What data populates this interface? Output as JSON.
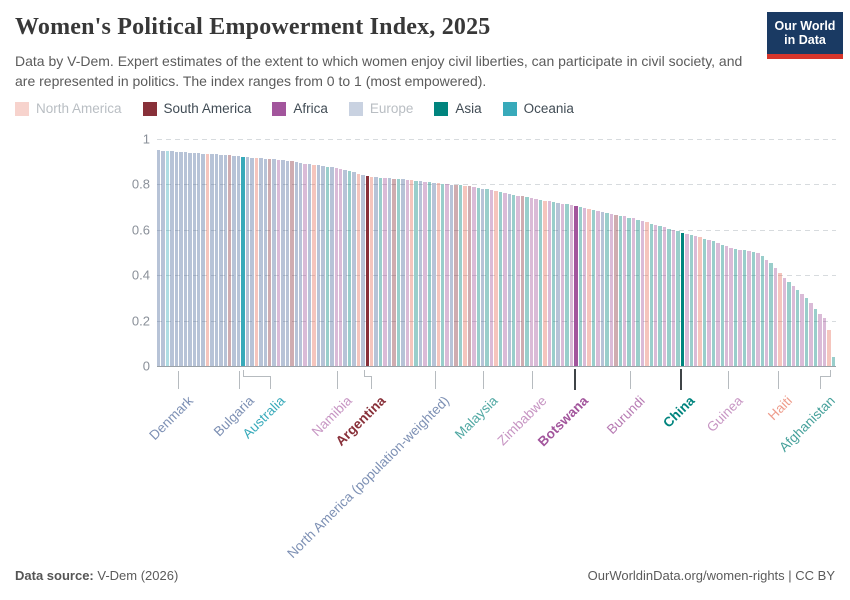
{
  "header": {
    "title": "Women's Political Empowerment Index, 2025",
    "subtitle": "Data by V-Dem. Expert estimates of the extent to which women enjoy civil liberties, can participate in civil society, and are represented in politics. The index ranges from 0 to 1 (most empowered).",
    "logo": {
      "line1": "Our World",
      "line2": "in Data"
    }
  },
  "legend": {
    "items": [
      {
        "label": "North America",
        "code": "N",
        "active": false
      },
      {
        "label": "South America",
        "code": "S",
        "active": true
      },
      {
        "label": "Africa",
        "code": "F",
        "active": true
      },
      {
        "label": "Europe",
        "code": "E",
        "active": false
      },
      {
        "label": "Asia",
        "code": "A",
        "active": true
      },
      {
        "label": "Oceania",
        "code": "O",
        "active": true
      }
    ],
    "active_text_color": "#414c55",
    "inactive_text_color": "#b9bec3"
  },
  "colors": {
    "continents": {
      "E": "#4C6A9C",
      "N": "#E56E5A",
      "S": "#883039",
      "F": "#A2559C",
      "A": "#00847E",
      "O": "#38AABA"
    },
    "faded_bar_opacity": 0.4,
    "logo_bg": "#1a3a63",
    "logo_stripe": "#d7352b"
  },
  "chart_data": {
    "type": "bar",
    "title": "Women's Political Empowerment Index, 2025",
    "xlabel": "",
    "ylabel": "",
    "ylim": [
      0,
      1
    ],
    "yticks": [
      1,
      0.8,
      0.6,
      0.4,
      0.2,
      0
    ],
    "grid": "dashed-horizontal",
    "legend_position": "top",
    "n_bars": 153,
    "sort": "descending",
    "values": [
      0.95,
      0.949,
      0.947,
      0.946,
      0.944,
      0.943,
      0.941,
      0.94,
      0.939,
      0.937,
      0.936,
      0.935,
      0.933,
      0.932,
      0.931,
      0.929,
      0.928,
      0.926,
      0.925,
      0.922,
      0.92,
      0.918,
      0.917,
      0.915,
      0.913,
      0.911,
      0.91,
      0.908,
      0.906,
      0.903,
      0.901,
      0.898,
      0.895,
      0.892,
      0.889,
      0.887,
      0.884,
      0.881,
      0.878,
      0.876,
      0.873,
      0.87,
      0.864,
      0.858,
      0.853,
      0.847,
      0.841,
      0.835,
      0.833,
      0.832,
      0.83,
      0.829,
      0.827,
      0.825,
      0.824,
      0.822,
      0.82,
      0.818,
      0.816,
      0.814,
      0.811,
      0.809,
      0.807,
      0.805,
      0.803,
      0.801,
      0.799,
      0.798,
      0.796,
      0.794,
      0.792,
      0.789,
      0.785,
      0.782,
      0.778,
      0.774,
      0.77,
      0.766,
      0.762,
      0.759,
      0.755,
      0.751,
      0.747,
      0.743,
      0.739,
      0.735,
      0.732,
      0.728,
      0.725,
      0.722,
      0.718,
      0.715,
      0.712,
      0.708,
      0.705,
      0.701,
      0.697,
      0.692,
      0.688,
      0.684,
      0.68,
      0.675,
      0.671,
      0.667,
      0.663,
      0.659,
      0.654,
      0.65,
      0.644,
      0.639,
      0.633,
      0.627,
      0.622,
      0.616,
      0.611,
      0.605,
      0.599,
      0.594,
      0.588,
      0.583,
      0.577,
      0.572,
      0.567,
      0.561,
      0.556,
      0.549,
      0.542,
      0.534,
      0.527,
      0.52,
      0.516,
      0.512,
      0.509,
      0.505,
      0.501,
      0.497,
      0.483,
      0.469,
      0.455,
      0.432,
      0.408,
      0.389,
      0.371,
      0.352,
      0.335,
      0.317,
      0.3,
      0.276,
      0.252,
      0.231,
      0.21,
      0.16,
      0.04
    ],
    "continents": "EEOEEEEEEEENEEEESEEOEENEESEFEESEEFENEEAEFFEAENESNEAFESAEFNAEFAENAFESANSFAEAFNAFEAFSAFFANFAEFAFFAFNAFEAFSAFAFAFNAFAFAFAAFAFNAFAFAFFAFAFAFAFAFNFAFAFAFAFFNA",
    "highlighted_indices": [
      19,
      47,
      94,
      118
    ],
    "labels": [
      {
        "name": "Denmark",
        "value": 0.94,
        "continent": "Europe",
        "bar_index": 4,
        "x": 178,
        "color": "#7D90B4",
        "bold": false
      },
      {
        "name": "Bulgaria",
        "value": 0.93,
        "continent": "Europe",
        "bar_index": 18,
        "x": 239,
        "color": "#7D90B4",
        "bold": false
      },
      {
        "name": "Australia",
        "value": 0.92,
        "continent": "Oceania",
        "bar_index": 19,
        "x": 270,
        "elbow_from": 243,
        "color": "#38AABA",
        "bold": false,
        "highlighted": true
      },
      {
        "name": "Namibia",
        "value": 0.87,
        "continent": "Africa",
        "bar_index": 41,
        "x": 337,
        "color": "#C795C3",
        "bold": false
      },
      {
        "name": "Argentina",
        "value": 0.84,
        "continent": "South America",
        "bar_index": 47,
        "x": 371,
        "elbow_from": 364,
        "color": "#883039",
        "bold": true,
        "highlighted": true
      },
      {
        "name": "North America (population-weighted)",
        "value": 0.81,
        "continent": "North America",
        "bar_index": 63,
        "x": 435,
        "color": "#7D90B4",
        "bold": false
      },
      {
        "name": "Malaysia",
        "value": 0.78,
        "continent": "Asia",
        "bar_index": 74,
        "x": 483,
        "color": "#4FA7A2",
        "bold": false
      },
      {
        "name": "Zimbabwe",
        "value": 0.74,
        "continent": "Africa",
        "bar_index": 85,
        "x": 532,
        "color": "#C795C3",
        "bold": false
      },
      {
        "name": "Botswana",
        "value": 0.71,
        "continent": "Africa",
        "bar_index": 94,
        "x": 574,
        "color": "#A2559C",
        "bold": true,
        "highlighted": true
      },
      {
        "name": "Burundi",
        "value": 0.65,
        "continent": "Africa",
        "bar_index": 107,
        "x": 630,
        "color": "#B87CB4",
        "bold": false
      },
      {
        "name": "China",
        "value": 0.59,
        "continent": "Asia",
        "bar_index": 118,
        "x": 680,
        "color": "#00847E",
        "bold": true,
        "highlighted": true
      },
      {
        "name": "Guinea",
        "value": 0.52,
        "continent": "Africa",
        "bar_index": 129,
        "x": 728,
        "color": "#C795C3",
        "bold": false
      },
      {
        "name": "Haiti",
        "value": 0.41,
        "continent": "North America",
        "bar_index": 140,
        "x": 778,
        "color": "#EE9C8B",
        "bold": false
      },
      {
        "name": "Afghanistan",
        "value": 0.04,
        "continent": "Asia",
        "bar_index": 152,
        "x": 820,
        "elbow_from": 830,
        "color": "#44A09A",
        "bold": false
      }
    ]
  },
  "footer": {
    "source_label": "Data source:",
    "source_value": " V-Dem (2026)",
    "right": "OurWorldinData.org/women-rights | CC BY"
  }
}
